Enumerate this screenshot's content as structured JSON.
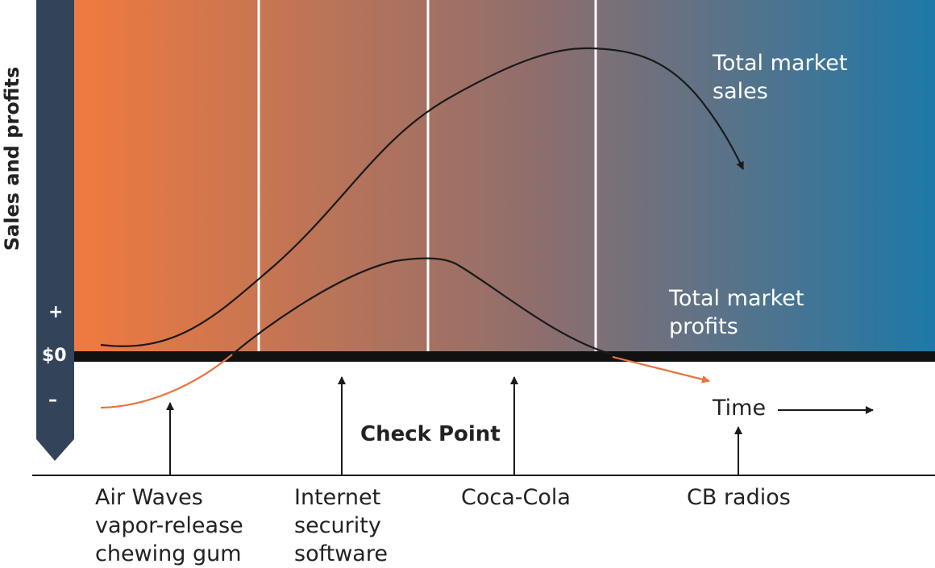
{
  "axis": {
    "y_label": "Sales and profits",
    "plus": "+",
    "zero": "$0",
    "minus": "–",
    "x_label": "Time"
  },
  "curves": {
    "sales_label": "Total market\nsales",
    "profits_label": "Total market\nprofits"
  },
  "checkpoint_label": "Check Point",
  "products": [
    "Air Waves\nvapor-release\nchewing gum",
    "Internet\nsecurity\nsoftware",
    "Coca-Cola",
    "CB radios"
  ],
  "colors": {
    "gradient_start": "#f07a3f",
    "gradient_mid": "#8c6e6e",
    "gradient_end": "#1e78a8",
    "y_bar": "#33445a",
    "profit_loss_line": "#e8733f",
    "curve": "#1a1a1a"
  }
}
